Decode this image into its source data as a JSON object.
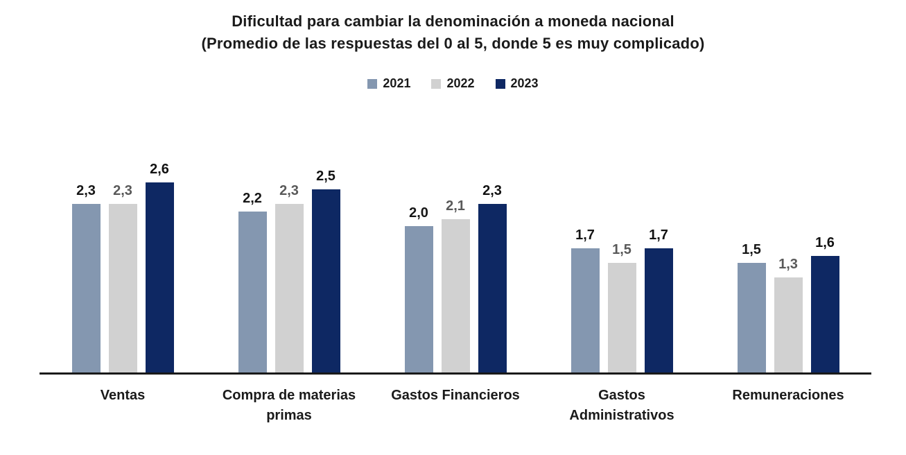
{
  "chart_data": {
    "type": "bar",
    "title": "Dificultad para cambiar la denominación a moneda nacional",
    "subtitle": "(Promedio de las respuestas del 0 al 5, donde 5 es muy complicado)",
    "legend_position": "top",
    "grid": false,
    "ylim": [
      0,
      3.4
    ],
    "decimal_separator": ",",
    "axis_color": "#1A1A1A",
    "background_color": "#FFFFFF",
    "series": [
      {
        "name": "2021",
        "color": "#8497B0",
        "label_color": "#161616"
      },
      {
        "name": "2022",
        "color": "#D1D1D1",
        "label_color": "#595959"
      },
      {
        "name": "2023",
        "color": "#0E2863",
        "label_color": "#111111"
      }
    ],
    "categories": [
      "Ventas",
      "Compra de materias primas",
      "Gastos Financieros",
      "Gastos Administrativos",
      "Remuneraciones"
    ],
    "category_label_lines": [
      [
        "Ventas"
      ],
      [
        "Compra de materias",
        "primas"
      ],
      [
        "Gastos Financieros"
      ],
      [
        "Gastos",
        "Administrativos"
      ],
      [
        "Remuneraciones"
      ]
    ],
    "values": [
      [
        2.3,
        2.3,
        2.6
      ],
      [
        2.2,
        2.3,
        2.5
      ],
      [
        2.0,
        2.1,
        2.3
      ],
      [
        1.7,
        1.5,
        1.7
      ],
      [
        1.5,
        1.3,
        1.6
      ]
    ],
    "display_labels": [
      [
        "2,3",
        "2,3",
        "2,6"
      ],
      [
        "2,2",
        "2,3",
        "2,5"
      ],
      [
        "2,0",
        "2,1",
        "2,3"
      ],
      [
        "1,7",
        "1,5",
        "1,7"
      ],
      [
        "1,5",
        "1,3",
        "1,6"
      ]
    ]
  }
}
